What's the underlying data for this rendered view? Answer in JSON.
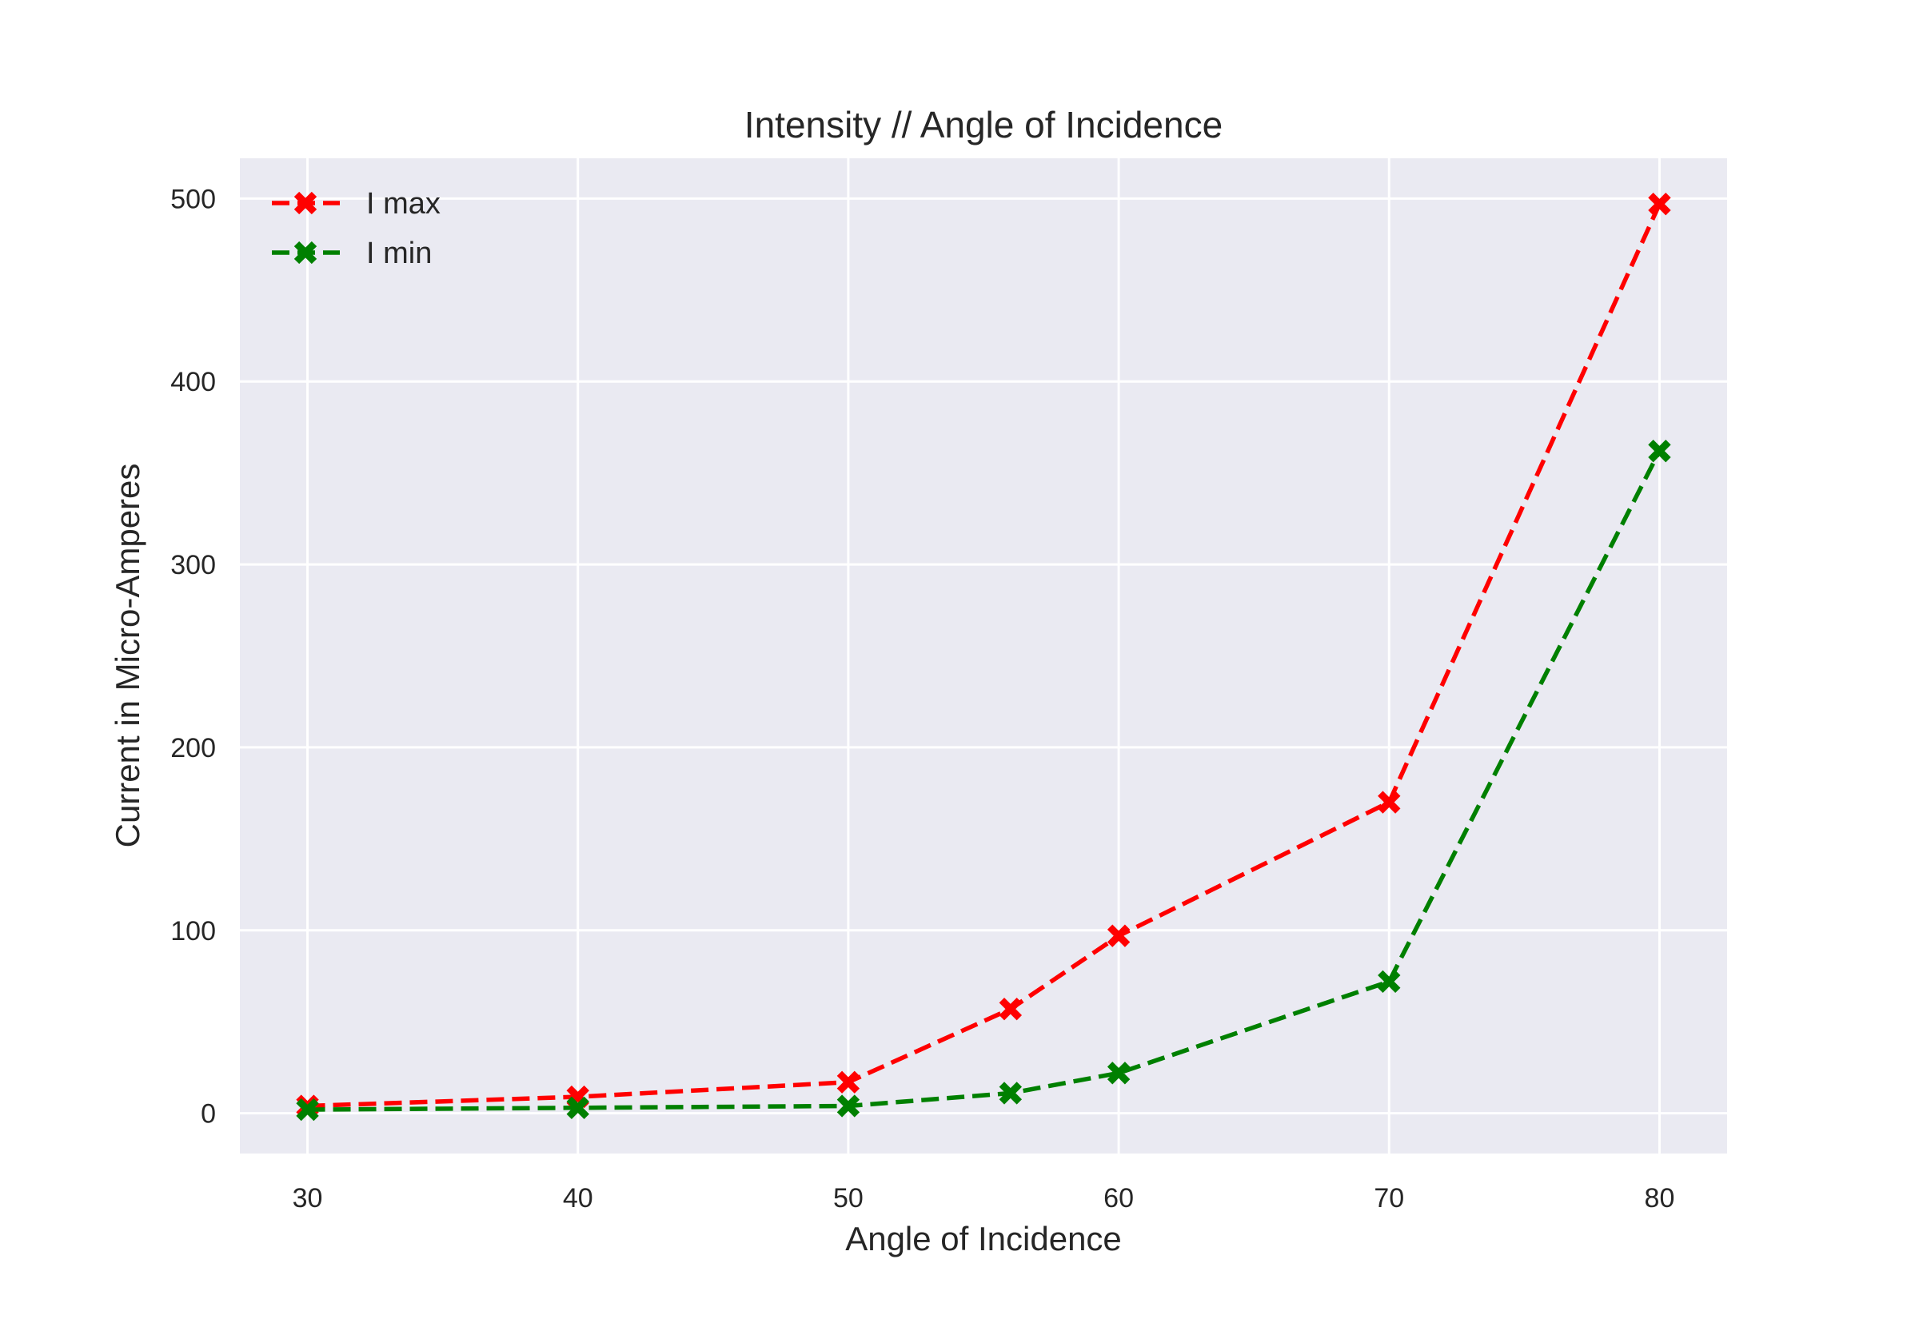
{
  "chart_data": {
    "type": "line",
    "title": "Intensity // Angle of Incidence",
    "xlabel": "Angle of Incidence",
    "ylabel": "Current in Micro-Amperes",
    "x": [
      30,
      40,
      50,
      56,
      60,
      70,
      80
    ],
    "xlim": [
      27.5,
      82.5
    ],
    "ylim": [
      -22,
      522
    ],
    "xticks": [
      30,
      40,
      50,
      60,
      70,
      80
    ],
    "yticks": [
      0,
      100,
      200,
      300,
      400,
      500
    ],
    "grid": true,
    "legend_position": "top-left",
    "background": "#eaeaf2",
    "series": [
      {
        "name": "I max",
        "color": "#ff0000",
        "linestyle": "dashed",
        "marker": "X",
        "values": [
          4,
          9,
          17,
          57,
          97,
          170,
          497
        ]
      },
      {
        "name": "I min",
        "color": "#008000",
        "linestyle": "dashed",
        "marker": "X",
        "values": [
          2,
          3,
          4,
          11,
          22,
          72,
          362
        ]
      }
    ]
  }
}
